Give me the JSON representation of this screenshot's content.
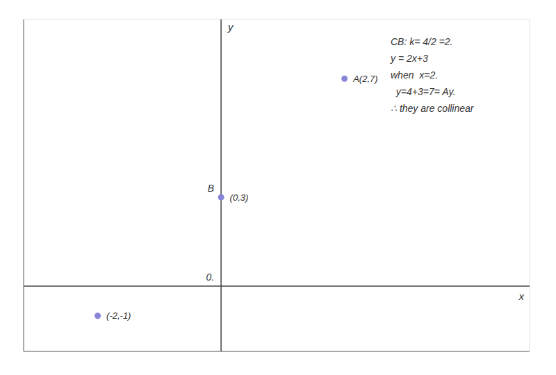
{
  "chart_data": {
    "type": "scatter",
    "x": [
      2,
      0,
      -2
    ],
    "values": [
      7,
      3,
      -1
    ],
    "point_labels": [
      "A(2,7)",
      "(0,3)",
      "(-2,-1)"
    ],
    "color": "#8884d8",
    "xlim": [
      -3.2,
      5.0
    ],
    "ylim": [
      -2.2,
      9.0
    ],
    "xticks": [
      -3,
      -2,
      -1,
      0,
      1,
      2,
      3,
      4,
      5
    ],
    "yticks": [
      -2,
      -1,
      0,
      1,
      2,
      3,
      4,
      5,
      6,
      7,
      8,
      9
    ],
    "grid": true,
    "tick_labels": false,
    "x_label": "x",
    "y_label": "y",
    "annotations": [
      {
        "text": "B",
        "x": 0,
        "y": 3
      },
      {
        "text": "0.",
        "x": 0,
        "y": 0
      },
      "CB: k= 4/2 =2.",
      "y = 2x+3",
      "when  x=2.",
      "  y=4+3=7= Ay.",
      "∴ they are collinear"
    ]
  }
}
